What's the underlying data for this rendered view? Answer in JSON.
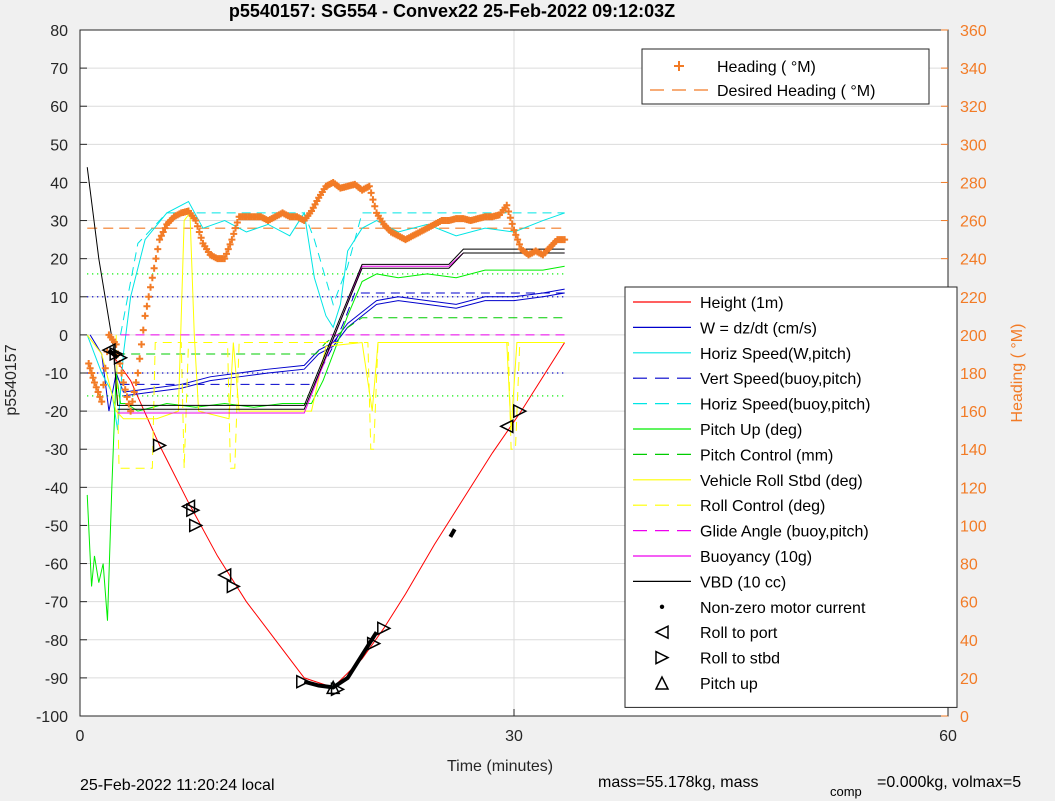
{
  "chart_data": {
    "type": "line",
    "title": "p5540157: SG554 - Convex22 25-Feb-2022 09:12:03Z",
    "xlabel": "Time (minutes)",
    "ylabel_left": "p5540157",
    "ylabel_right": "Heading (  °M)",
    "xlim": [
      0,
      60
    ],
    "ylim_left": [
      -100,
      80
    ],
    "ylim_right": [
      0,
      360
    ],
    "x_ticks": [
      0,
      30,
      60
    ],
    "y_ticks_left": [
      -100,
      -90,
      -80,
      -70,
      -60,
      -50,
      -40,
      -30,
      -20,
      -10,
      0,
      10,
      20,
      30,
      40,
      50,
      60,
      70,
      80
    ],
    "y_ticks_right": [
      0,
      20,
      40,
      60,
      80,
      100,
      120,
      140,
      160,
      180,
      200,
      220,
      240,
      260,
      280,
      300,
      320,
      340,
      360
    ],
    "grid": true,
    "legend_main_placement": "right-middle",
    "legend_heading_placement": "top-right",
    "legend_heading": [
      {
        "name": "Heading (  °M)",
        "color": "#f27b26",
        "style": "plus"
      },
      {
        "name": "Desired Heading (    °M)",
        "color": "#f27b26",
        "style": "dashed"
      }
    ],
    "legend": [
      {
        "name": "Height (1m)",
        "color": "#ff0000",
        "style": "solid"
      },
      {
        "name": "W = dz/dt (cm/s)",
        "color": "#0000cc",
        "style": "solid"
      },
      {
        "name": "Horiz Speed(W,pitch)",
        "color": "#00e5e5",
        "style": "solid"
      },
      {
        "name": "Vert Speed(buoy,pitch)",
        "color": "#0000cc",
        "style": "dashed"
      },
      {
        "name": "Horiz Speed(buoy,pitch)",
        "color": "#00e5e5",
        "style": "dashed"
      },
      {
        "name": "Pitch Up (deg)",
        "color": "#00ee00",
        "style": "solid"
      },
      {
        "name": "Pitch Control (mm)",
        "color": "#00cc00",
        "style": "dashed"
      },
      {
        "name": "Vehicle Roll Stbd (deg)",
        "color": "#ffff00",
        "style": "solid"
      },
      {
        "name": "Roll Control (deg)",
        "color": "#ffff00",
        "style": "dashed"
      },
      {
        "name": "Glide Angle (buoy,pitch)",
        "color": "#ee00ee",
        "style": "dashed"
      },
      {
        "name": "Buoyancy (10g)",
        "color": "#ee00ee",
        "style": "solid"
      },
      {
        "name": "VBD (10 cc)",
        "color": "#000000",
        "style": "solid"
      },
      {
        "name": "Non-zero motor current",
        "color": "#000000",
        "style": "dot"
      },
      {
        "name": "Roll to port",
        "color": "#000000",
        "style": "tri-left"
      },
      {
        "name": "Roll to stbd",
        "color": "#000000",
        "style": "tri-right"
      },
      {
        "name": "Pitch up",
        "color": "#000000",
        "style": "tri-up"
      }
    ],
    "series": [
      {
        "name": "Height (1m)",
        "color": "#ff0000",
        "dash": "",
        "width": 1,
        "x": [
          2.0,
          3.5,
          5.5,
          7.5,
          9.5,
          11.5,
          13.5,
          15.5,
          17.5,
          19.5,
          21,
          22.5,
          24.5,
          26.5,
          28.5,
          30.5,
          33.5
        ],
        "y": [
          -4,
          -12,
          -29,
          -44,
          -58,
          -70,
          -80,
          -90,
          -92.5,
          -85,
          -77,
          -68,
          -55,
          -43,
          -31,
          -20,
          -2
        ]
      },
      {
        "name": "W = dz/dt (cm/s)",
        "color": "#0000cc",
        "dash": "",
        "width": 1,
        "x": [
          0.7,
          1.5,
          2.0,
          2.5,
          3.0,
          5,
          7,
          9,
          11,
          13,
          15.5,
          16.5,
          17.5,
          18.5,
          19.5,
          20.5,
          22,
          24,
          26,
          28,
          30,
          32,
          33.5
        ],
        "y": [
          0,
          -5,
          -20,
          -10,
          -15,
          -14,
          -13,
          -11,
          -10,
          -9,
          -8,
          -4,
          -2,
          3,
          6,
          9,
          10,
          9,
          8,
          10,
          10,
          11,
          12
        ]
      },
      {
        "name": "W = dz/dt (cm/s) 2",
        "color": "#0000cc",
        "dash": "",
        "width": 1,
        "x": [
          3.0,
          5,
          7,
          9,
          11,
          13,
          15.5,
          16.5,
          17.5,
          18.5,
          19.5,
          20.5,
          22,
          24,
          26,
          28,
          30,
          32,
          33.5
        ],
        "y": [
          -16,
          -15,
          -14,
          -12,
          -11,
          -10,
          -9,
          -5,
          -3,
          2,
          5,
          8,
          9,
          8,
          7,
          9,
          9,
          10,
          11
        ]
      },
      {
        "name": "Horiz Speed(W,pitch)",
        "color": "#00e5e5",
        "dash": "",
        "width": 1,
        "x": [
          0.5,
          1.5,
          2.2,
          2.6,
          3,
          3.5,
          4.5,
          6,
          7.5,
          8.5,
          10,
          11.5,
          13,
          14.5,
          15.5,
          16.2,
          17,
          17.5,
          18,
          18.5,
          19.5,
          20.5,
          22,
          24,
          26,
          28,
          30,
          32,
          33.5
        ],
        "y": [
          0,
          -10,
          -15,
          -25,
          -5,
          10,
          25,
          32,
          35,
          28,
          30,
          27,
          29,
          26,
          32,
          15,
          5,
          2,
          8,
          22,
          28,
          30,
          27,
          29,
          26,
          28,
          27,
          30,
          32
        ]
      },
      {
        "name": "Vert Speed(buoy,pitch)",
        "color": "#0000cc",
        "dash": "9 6",
        "width": 1,
        "x": [
          2.8,
          16.2,
          16.8,
          17.5,
          18.2,
          19,
          33.5
        ],
        "y": [
          -13,
          -13,
          -8,
          -3,
          3,
          11,
          11
        ]
      },
      {
        "name": "Horiz Speed(buoy,pitch)",
        "color": "#00e5e5",
        "dash": "9 6",
        "width": 1,
        "x": [
          2.8,
          4,
          6,
          8,
          15.5,
          16.2,
          17.5,
          18.5,
          19.5,
          33.5
        ],
        "y": [
          0,
          24,
          32,
          32,
          32,
          25,
          8,
          18,
          32,
          32
        ]
      },
      {
        "name": "Pitch Up (deg)",
        "color": "#00ee00",
        "dash": "",
        "width": 1,
        "x": [
          0.5,
          0.8,
          1.0,
          1.3,
          1.6,
          1.9,
          2.2,
          2.5,
          2.8,
          3.2,
          4,
          6,
          8,
          10,
          12,
          14,
          16,
          16.8,
          17.5,
          18.5,
          19.5,
          20.5,
          22,
          24,
          26,
          28,
          30,
          32,
          33.5
        ],
        "y": [
          -42,
          -66,
          -58,
          -65,
          -60,
          -75,
          -40,
          -10,
          -18,
          -18,
          -20,
          -18,
          -19,
          -18,
          -19,
          -18,
          -18,
          -12,
          -5,
          5,
          14,
          16,
          15,
          16,
          15,
          17,
          17,
          17,
          18
        ]
      },
      {
        "name": "Pitch Control (mm)",
        "color": "#00cc00",
        "dash": "9 6",
        "width": 1,
        "x": [
          2.5,
          3.0,
          16.3,
          17.0,
          19.5,
          33.5
        ],
        "y": [
          -5,
          -5,
          -5,
          -2,
          4.5,
          4.5
        ]
      },
      {
        "name": "Vehicle Roll Stbd (deg)",
        "color": "#ffff00",
        "dash": "",
        "width": 1,
        "x": [
          0.5,
          1.5,
          2.5,
          3.0,
          5.0,
          5.3,
          6.8,
          7.2,
          7.6,
          7.9,
          8.2,
          10.3,
          10.6,
          11,
          16,
          17,
          19.5,
          20.2,
          20.6,
          21,
          29.5,
          29.8,
          30.2,
          31,
          33.5
        ],
        "y": [
          0,
          -5,
          -20,
          -22,
          -22,
          -22,
          -20,
          30,
          32,
          0,
          -20,
          -22,
          -2,
          -20,
          -20,
          -3,
          -2,
          -20,
          -2,
          -2,
          -2,
          -25,
          -2,
          -2,
          -2
        ]
      },
      {
        "name": "Roll Control (deg)",
        "color": "#ffff00",
        "dash": "9 6",
        "width": 1,
        "x": [
          2.5,
          2.7,
          5.0,
          5.2,
          5.4,
          7.0,
          7.2,
          7.5,
          10.2,
          10.4,
          10.7,
          11.0,
          19.9,
          20.1,
          20.3,
          20.6,
          29.6,
          29.8,
          30.1,
          30.4
        ],
        "y": [
          0,
          -35,
          -35,
          -2,
          -2,
          -2,
          -35,
          -2,
          -2,
          -35,
          -35,
          -2,
          -2,
          -30,
          -30,
          -2,
          -2,
          -30,
          -30,
          -2
        ]
      },
      {
        "name": "Glide Angle (buoy,pitch)",
        "color": "#ee00ee",
        "dash": "9 6",
        "width": 1,
        "x": [
          2.8,
          33.5
        ],
        "y": [
          0,
          0
        ]
      },
      {
        "name": "Buoyancy (10g)",
        "color": "#ee00ee",
        "dash": "",
        "width": 1,
        "x": [
          2.6,
          15.5,
          19.5,
          25.5,
          26.5,
          33.5
        ],
        "y": [
          -20.5,
          -20.5,
          18,
          18,
          21.5,
          21.5
        ]
      },
      {
        "name": "VBD (10 cc)",
        "color": "#000000",
        "dash": "",
        "width": 1,
        "x": [
          0.5,
          1.3,
          2.3,
          2.6,
          15.5,
          19.5,
          25.5,
          26.5,
          33.5
        ],
        "y": [
          44,
          20,
          -3,
          -18.5,
          -18.5,
          18.5,
          18.5,
          22.5,
          22.5
        ]
      },
      {
        "name": "VBD (10 cc) 2",
        "color": "#000000",
        "dash": "",
        "width": 1,
        "x": [
          2.6,
          15.5,
          19.5,
          25.5,
          26.5,
          33.5
        ],
        "y": [
          -19.5,
          -19.5,
          17.5,
          17.5,
          21.5,
          21.5
        ]
      }
    ],
    "ref_lines": [
      {
        "y": 16,
        "color": "#00ee00",
        "dash": "1 4",
        "x0": 0.5,
        "x1": 33.5
      },
      {
        "y": -16,
        "color": "#00ee00",
        "dash": "1 4",
        "x0": 0.5,
        "x1": 33.5
      },
      {
        "y": 10,
        "color": "#0000cc",
        "dash": "1 4",
        "x0": 0.5,
        "x1": 33.5
      },
      {
        "y": -10,
        "color": "#0000cc",
        "dash": "1 4",
        "x0": 0.5,
        "x1": 33.5
      }
    ],
    "desired_heading": {
      "value": 256,
      "x0": 0.5,
      "x1": 33.5
    },
    "heading": {
      "x": [
        0.6,
        1.0,
        1.5,
        2.0,
        2.5,
        3.0,
        3.5,
        4.0,
        4.5,
        5.0,
        5.5,
        6.0,
        6.5,
        7.0,
        7.5,
        8.0,
        8.5,
        9.0,
        9.5,
        10.0,
        10.5,
        11.0,
        11.5,
        12.0,
        12.5,
        13.0,
        13.5,
        14.0,
        14.5,
        15.0,
        15.5,
        16.0,
        16.5,
        17.0,
        17.5,
        18.0,
        18.5,
        19.0,
        19.5,
        20.0,
        20.5,
        21.0,
        21.5,
        22.0,
        22.5,
        23.0,
        23.5,
        24.0,
        24.5,
        25.0,
        25.5,
        26.0,
        26.5,
        27.0,
        27.5,
        28.0,
        28.5,
        29.0,
        29.5,
        30.0,
        30.5,
        31.0,
        31.5,
        32.0,
        32.5,
        33.0,
        33.5
      ],
      "y": [
        185,
        175,
        165,
        200,
        195,
        175,
        160,
        180,
        210,
        230,
        250,
        258,
        262,
        264,
        265,
        260,
        248,
        242,
        240,
        240,
        250,
        262,
        262,
        262,
        262,
        260,
        262,
        264,
        262,
        262,
        260,
        265,
        272,
        278,
        280,
        277,
        278,
        279,
        276,
        278,
        264,
        258,
        254,
        252,
        250,
        252,
        254,
        256,
        258,
        260,
        260,
        261,
        261,
        260,
        261,
        262,
        262,
        263,
        268,
        255,
        245,
        242,
        244,
        242,
        246,
        250,
        250
      ]
    },
    "markers": {
      "roll_to_port": [
        [
          2.0,
          -4
        ],
        [
          7.5,
          -45
        ],
        [
          10.0,
          -63
        ],
        [
          29.5,
          -24
        ]
      ],
      "roll_to_stbd": [
        [
          2.5,
          -5
        ],
        [
          2.8,
          -6
        ],
        [
          5.5,
          -29
        ],
        [
          7.8,
          -46
        ],
        [
          8.0,
          -50
        ],
        [
          10.6,
          -66
        ],
        [
          15.4,
          -91
        ],
        [
          17.8,
          -93
        ],
        [
          20.3,
          -81
        ],
        [
          21.0,
          -77
        ],
        [
          30.4,
          -20
        ]
      ],
      "pitch_up": [
        [
          17.5,
          -92.5
        ]
      ],
      "motor_current_segments": [
        [
          [
            15.5,
            -91
          ],
          [
            16.5,
            -92
          ],
          [
            17.5,
            -92.5
          ],
          [
            18.5,
            -90
          ],
          [
            19.5,
            -84
          ],
          [
            20.5,
            -78
          ]
        ],
        [
          [
            25.6,
            -53
          ],
          [
            25.9,
            -51
          ]
        ],
        [
          [
            2.0,
            -4
          ],
          [
            2.6,
            -6
          ]
        ]
      ]
    }
  },
  "footer": {
    "local_time": "25-Feb-2022 11:20:24 local",
    "mass_text": "mass=55.178kg, mass",
    "comp_sub": "comp",
    "comp_text": "=0.000kg, volmax=5"
  }
}
